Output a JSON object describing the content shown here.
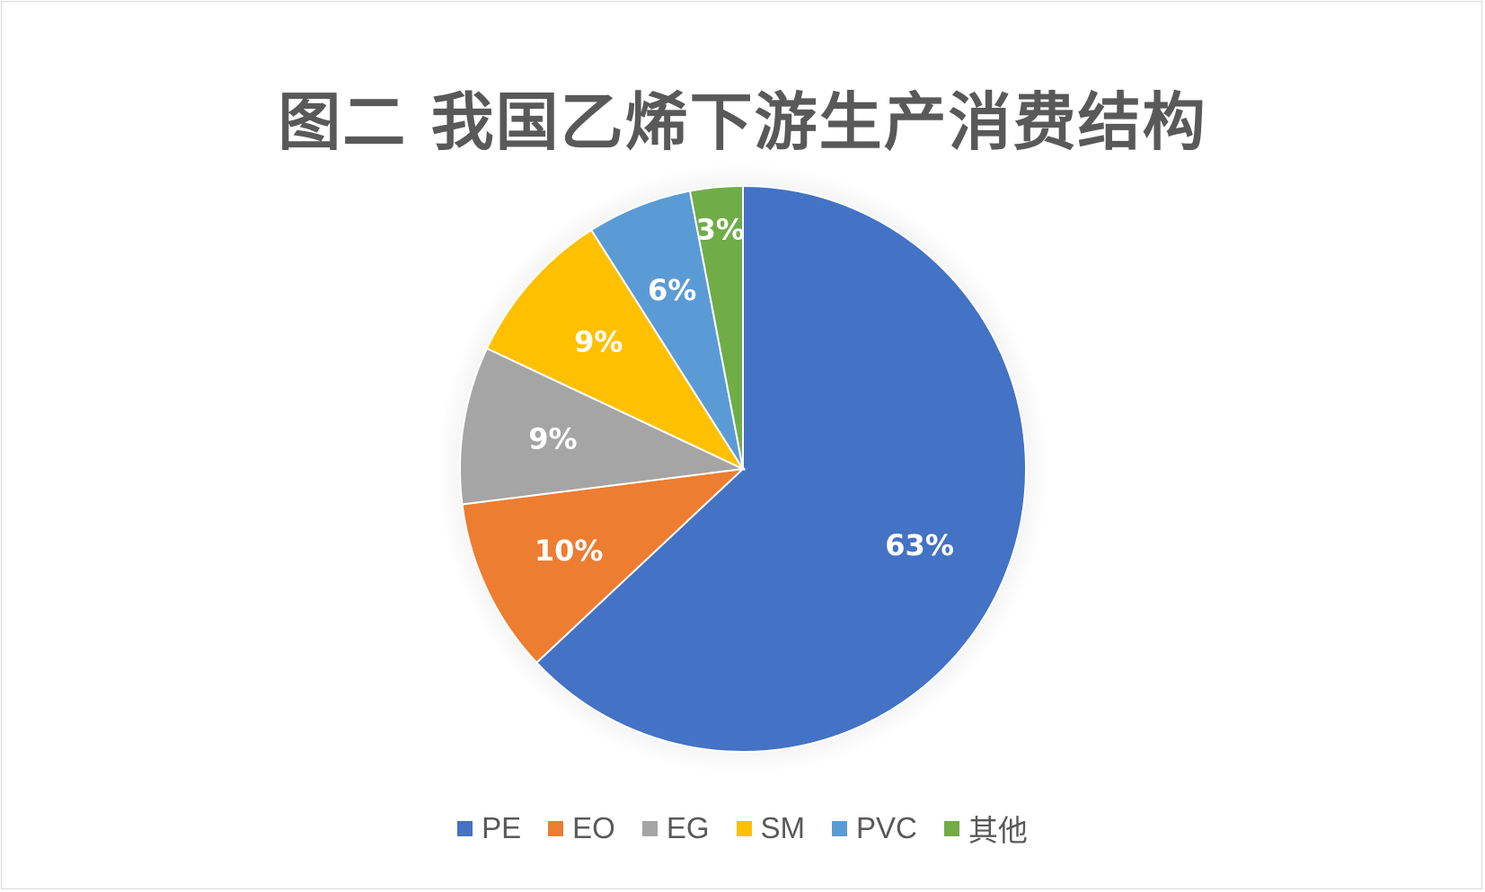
{
  "chart_data": {
    "type": "pie",
    "title": "图二 我国乙烯下游生产消费结构",
    "categories": [
      "PE",
      "EO",
      "EG",
      "SM",
      "PVC",
      "其他"
    ],
    "values": [
      63,
      10,
      9,
      9,
      6,
      3
    ],
    "labels": [
      "63%",
      "10%",
      "9%",
      "9%",
      "6%",
      "3%"
    ],
    "colors": [
      "#4472c4",
      "#ed7d31",
      "#a5a5a5",
      "#ffc000",
      "#5b9bd5",
      "#70ad47"
    ],
    "legend": "bottom",
    "start": "top",
    "direction": "clockwise"
  }
}
